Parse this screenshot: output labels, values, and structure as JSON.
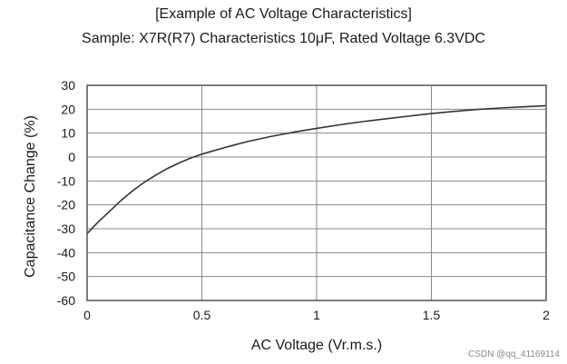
{
  "chart_data": {
    "type": "line",
    "title": "[Example of  AC Voltage Characteristics]",
    "subtitle": "Sample:  X7R(R7)  Characteristics 10μF, Rated Voltage 6.3VDC",
    "xlabel": "AC Voltage (Vr.m.s.)",
    "ylabel": "Capacitance Change  (%)",
    "xlim": [
      0,
      2
    ],
    "ylim": [
      -60,
      30
    ],
    "x_ticks": [
      0,
      0.5,
      1,
      1.5,
      2
    ],
    "x_tick_labels": [
      "0",
      "0.5",
      "1",
      "1.5",
      "2"
    ],
    "y_ticks": [
      30,
      20,
      10,
      0,
      -10,
      -20,
      -30,
      -40,
      -50,
      -60
    ],
    "y_tick_labels": [
      "30",
      "20",
      "10",
      "0",
      "-10",
      "-20",
      "-30",
      "-40",
      "-50",
      "-60"
    ],
    "grid": true,
    "line_color": "#333333",
    "series": [
      {
        "x": [
          0,
          0.05,
          0.1,
          0.15,
          0.2,
          0.25,
          0.3,
          0.35,
          0.4,
          0.45,
          0.5,
          0.6,
          0.7,
          0.8,
          0.9,
          1.0,
          1.1,
          1.2,
          1.3,
          1.4,
          1.5,
          1.6,
          1.7,
          1.8,
          1.9,
          2.0
        ],
        "y": [
          -32,
          -27,
          -22.5,
          -18,
          -14,
          -10.5,
          -7.5,
          -4.8,
          -2.5,
          -0.5,
          1.2,
          4,
          6.5,
          8.6,
          10.4,
          12,
          13.5,
          14.8,
          16,
          17.1,
          18.2,
          19.1,
          19.9,
          20.5,
          21,
          21.5
        ]
      }
    ]
  },
  "watermark": "CSDN @qq_41169114"
}
